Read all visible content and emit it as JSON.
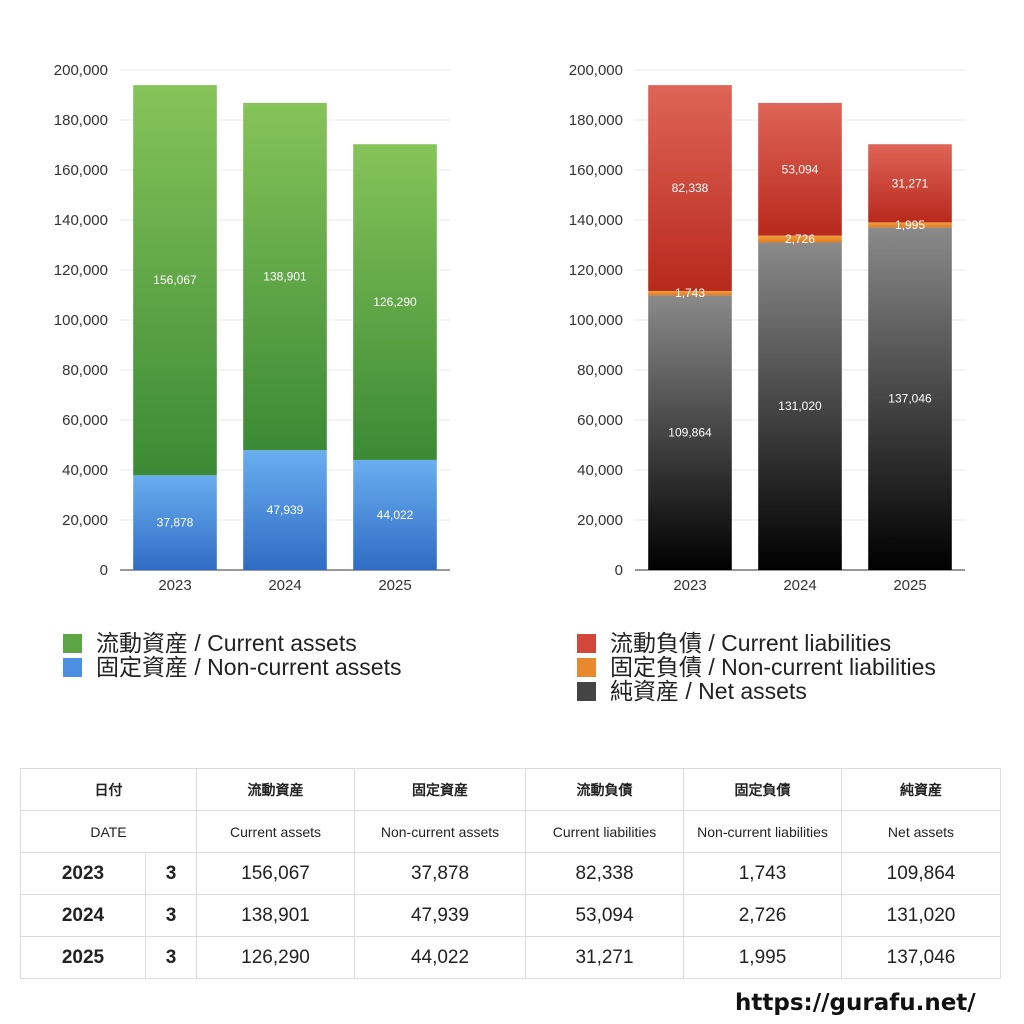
{
  "chart_data": [
    {
      "type": "bar",
      "stacked": true,
      "categories": [
        "2023",
        "2024",
        "2025"
      ],
      "ylim": [
        0,
        200000
      ],
      "yticks": [
        "0",
        "20,000",
        "40,000",
        "60,000",
        "80,000",
        "100,000",
        "120,000",
        "140,000",
        "160,000",
        "180,000",
        "200,000"
      ],
      "grid": true,
      "legend_position": "bottom",
      "series": [
        {
          "name": "固定資産 / Non-current assets",
          "values": [
            37878,
            47939,
            44022
          ],
          "labels": [
            "37,878",
            "47,939",
            "44,022"
          ],
          "color_top": "#6aaef0",
          "color_bottom": "#2f6cc4"
        },
        {
          "name": "流動資産 / Current assets",
          "values": [
            156067,
            138901,
            126290
          ],
          "labels": [
            "156,067",
            "138,901",
            "126,290"
          ],
          "color_top": "#86c459",
          "color_bottom": "#3b8a35"
        }
      ]
    },
    {
      "type": "bar",
      "stacked": true,
      "categories": [
        "2023",
        "2024",
        "2025"
      ],
      "ylim": [
        0,
        200000
      ],
      "yticks": [
        "0",
        "20,000",
        "40,000",
        "60,000",
        "80,000",
        "100,000",
        "120,000",
        "140,000",
        "160,000",
        "180,000",
        "200,000"
      ],
      "grid": true,
      "legend_position": "bottom",
      "series": [
        {
          "name": "純資産 / Net assets",
          "values": [
            109864,
            131020,
            137046
          ],
          "labels": [
            "109,864",
            "131,020",
            "137,046"
          ],
          "color_top": "#8a8a8a",
          "color_bottom": "#000000"
        },
        {
          "name": "固定負債 / Non-current liabilities",
          "values": [
            1743,
            2726,
            1995
          ],
          "labels": [
            "1,743",
            "2,726",
            "1,995"
          ],
          "color_top": "#f0a040",
          "color_bottom": "#e07a20"
        },
        {
          "name": "流動負債 / Current liabilities",
          "values": [
            82338,
            53094,
            31271
          ],
          "labels": [
            "82,338",
            "53,094",
            "31,271"
          ],
          "color_top": "#de6557",
          "color_bottom": "#b8291d"
        }
      ]
    }
  ],
  "legend_left": [
    {
      "label": "流動資産 / Current assets",
      "color": "#5da545"
    },
    {
      "label": "固定資産 / Non-current assets",
      "color": "#4a8fe0"
    }
  ],
  "legend_right": [
    {
      "label": "流動負債 / Current liabilities",
      "color": "#d2473a"
    },
    {
      "label": "固定負債 / Non-current liabilities",
      "color": "#e9892e"
    },
    {
      "label": "純資産 / Net assets",
      "color": "#444444"
    }
  ],
  "table": {
    "header_ja": [
      "日付",
      "流動資産",
      "固定資産",
      "流動負債",
      "固定負債",
      "純資産"
    ],
    "header_en": [
      "DATE",
      "Current assets",
      "Non-current assets",
      "Current liabilities",
      "Non-current liabilities",
      "Net assets"
    ],
    "rows": [
      {
        "year": "2023",
        "month": "3",
        "values": [
          "156,067",
          "37,878",
          "82,338",
          "1,743",
          "109,864"
        ]
      },
      {
        "year": "2024",
        "month": "3",
        "values": [
          "138,901",
          "47,939",
          "53,094",
          "2,726",
          "131,020"
        ]
      },
      {
        "year": "2025",
        "month": "3",
        "values": [
          "126,290",
          "44,022",
          "31,271",
          "1,995",
          "137,046"
        ]
      }
    ]
  },
  "source": "https://gurafu.net/"
}
